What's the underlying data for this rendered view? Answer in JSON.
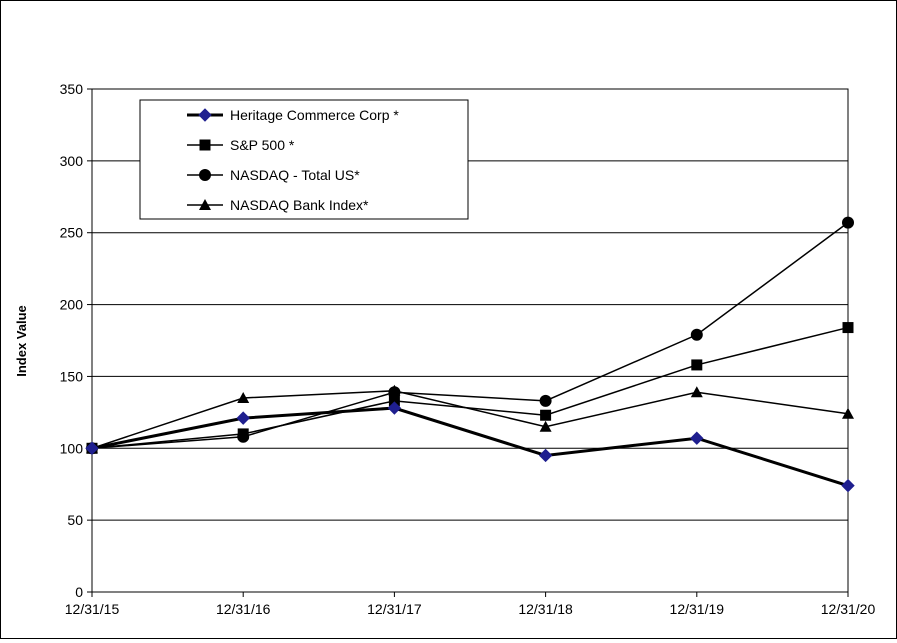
{
  "chart_data": {
    "type": "line",
    "title": "",
    "xlabel": "",
    "ylabel": "Index Value",
    "categories": [
      "12/31/15",
      "12/31/16",
      "12/31/17",
      "12/31/18",
      "12/31/19",
      "12/31/20"
    ],
    "ylim": [
      0,
      350
    ],
    "yticks": [
      0,
      50,
      100,
      150,
      200,
      250,
      300,
      350
    ],
    "grid": true,
    "legend_position": "top-left",
    "series": [
      {
        "name": "Heritage Commerce Corp *",
        "marker": "diamond",
        "color": "#000000",
        "marker_color": "#1f1f8f",
        "bold": true,
        "values": [
          100,
          121,
          128,
          95,
          107,
          74
        ]
      },
      {
        "name": "S&P 500 *",
        "marker": "square",
        "color": "#000000",
        "values": [
          100,
          110,
          133,
          123,
          158,
          184
        ]
      },
      {
        "name": "NASDAQ - Total US*",
        "marker": "circle",
        "color": "#000000",
        "values": [
          100,
          108,
          139,
          133,
          179,
          257
        ]
      },
      {
        "name": "NASDAQ Bank Index*",
        "marker": "triangle",
        "color": "#000000",
        "values": [
          100,
          135,
          140,
          115,
          139,
          124
        ]
      }
    ]
  }
}
